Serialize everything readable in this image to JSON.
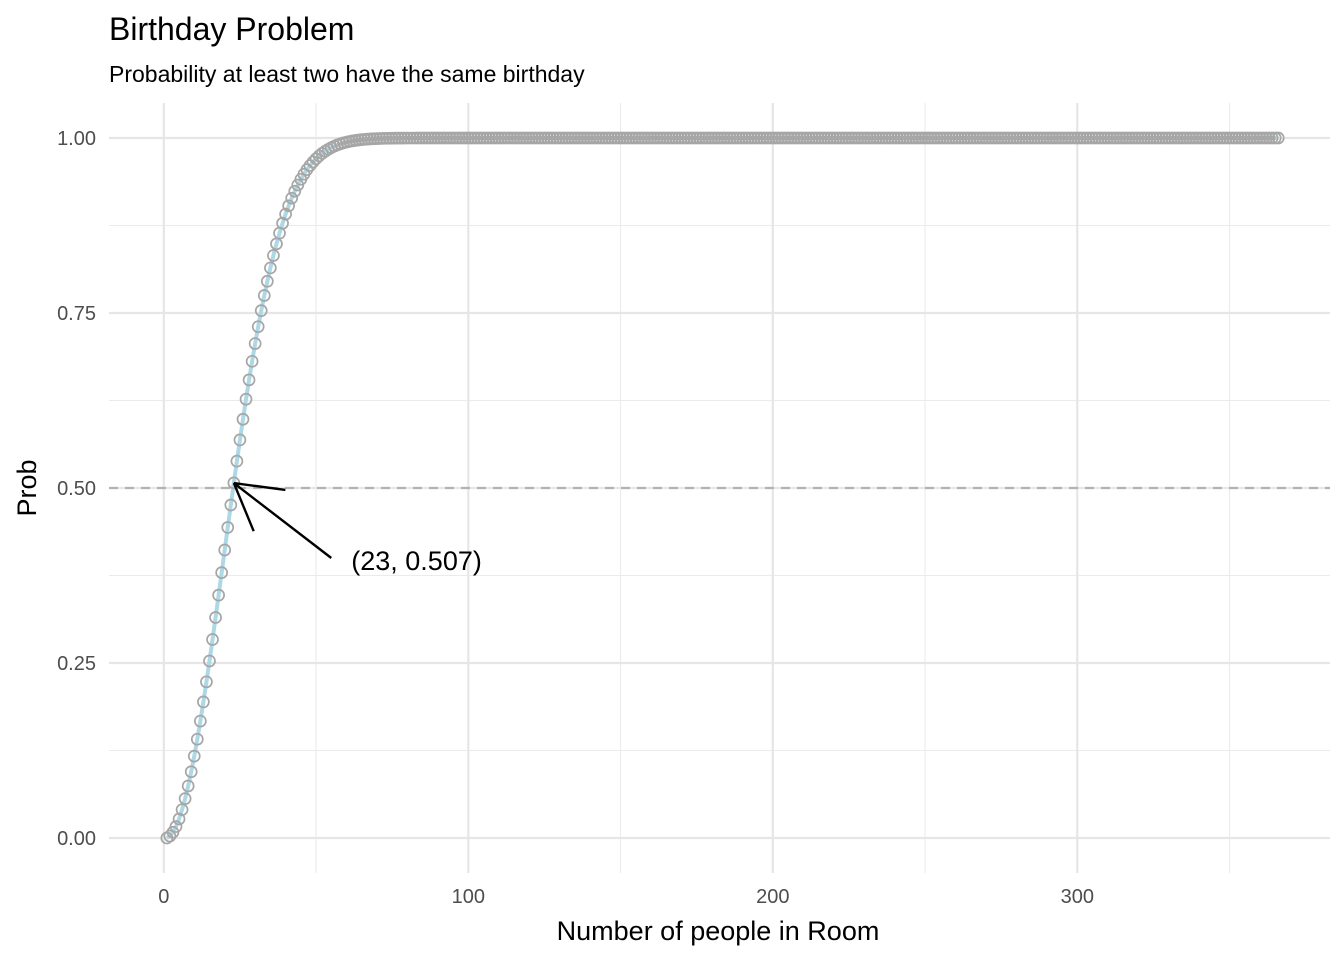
{
  "chart_data": {
    "type": "line",
    "title": "Birthday Problem",
    "subtitle": "Probability at least two have the same birthday",
    "xlabel": "Number of people in Room",
    "ylabel": "Prob",
    "xlim": [
      -18,
      383
    ],
    "ylim": [
      -0.05,
      1.05
    ],
    "x_ticks": [
      0,
      100,
      200,
      300
    ],
    "x_minor_ticks": [
      50,
      150,
      250,
      350
    ],
    "y_ticks": [
      0,
      0.25,
      0.5,
      0.75,
      1
    ],
    "y_tick_labels": [
      "0.00",
      "0.25",
      "0.50",
      "0.75",
      "1.00"
    ],
    "y_minor_ticks": [
      0.125,
      0.375,
      0.625,
      0.875
    ],
    "grid": true,
    "n_range": [
      1,
      366
    ],
    "days_in_year": 365,
    "reference_line": {
      "y": 0.5,
      "style": "dashed",
      "color": "#b3b3b3"
    },
    "series": [
      {
        "values_rule": "p(n) = 1 - prod_{k=0}^{n-1} (365-k)/365",
        "style": "line",
        "color": "#add8e6"
      },
      {
        "values_rule": "p(n) = 1 - prod_{k=0}^{n-1} (365-k)/365",
        "style": "open-circles",
        "color": "#a6a6a6"
      }
    ],
    "annotation": {
      "text": "(23, 0.507)",
      "point": {
        "x": 23,
        "y": 0.507
      },
      "arrow_from": {
        "x": 55,
        "y": 0.4
      }
    }
  }
}
